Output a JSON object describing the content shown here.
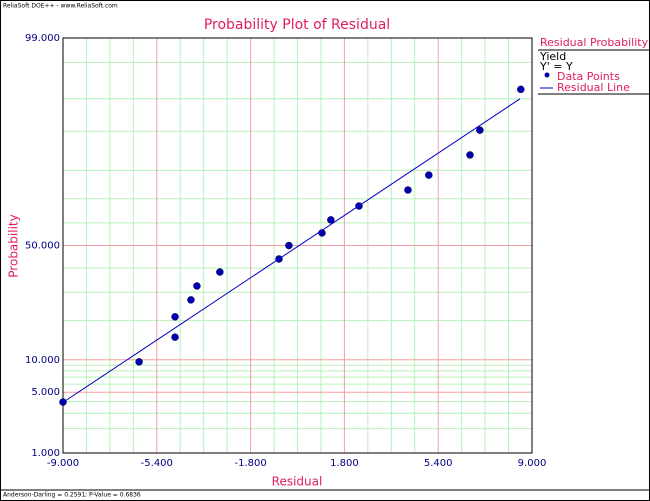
{
  "chart_data": {
    "type": "scatter",
    "header": "ReliaSoft DOE++ - www.ReliaSoft.com",
    "title": "Probability Plot of Residual",
    "xlabel": "Residual",
    "ylabel": "Probability",
    "footer": "Anderson-Darling = 0.2591; P-Value = 0.6836",
    "legend_title": "Residual Probability",
    "legend_lines": [
      "Yield",
      "Y' = Y"
    ],
    "yscale": "normal-probability",
    "xlim": [
      -9,
      9
    ],
    "ylim": [
      1,
      99
    ],
    "xticks": [
      {
        "value": -9,
        "label": "-9.000"
      },
      {
        "value": -5.4,
        "label": "-5.400"
      },
      {
        "value": -1.8,
        "label": "-1.800"
      },
      {
        "value": 1.8,
        "label": "1.800"
      },
      {
        "value": 5.4,
        "label": "5.400"
      },
      {
        "value": 9,
        "label": "9.000"
      }
    ],
    "yticks": [
      {
        "value": 1,
        "label": "1.000"
      },
      {
        "value": 5,
        "label": "5.000"
      },
      {
        "value": 10,
        "label": "10.000"
      },
      {
        "value": 50,
        "label": "50.000"
      },
      {
        "value": 99,
        "label": "99.000"
      }
    ],
    "x_minor_grid": [
      -8.1,
      -7.2,
      -6.3,
      -4.5,
      -3.6,
      -2.7,
      -0.9,
      0,
      0.9,
      2.7,
      3.6,
      4.5,
      6.3,
      7.2,
      8.1
    ],
    "y_minor_grid": [
      2,
      3,
      4,
      6,
      7,
      8,
      9,
      20,
      30,
      40,
      60,
      70,
      80,
      90,
      95,
      98
    ],
    "grid_color": "#b8f0b8",
    "major_grid_color": "#f0a0a0",
    "series": [
      {
        "name": "Data Points",
        "type": "scatter",
        "color": "#0000b0",
        "x": [
          -9.0,
          -6.08,
          -4.7,
          -4.7,
          -4.09,
          -3.86,
          -2.98,
          -0.71,
          -0.33,
          0.94,
          1.28,
          2.36,
          4.24,
          5.04,
          6.62,
          7.0,
          8.57
        ],
        "values": [
          3.96,
          9.6,
          15.2,
          21.2,
          27.1,
          32.5,
          38.3,
          44.0,
          50.0,
          55.6,
          61.3,
          67.1,
          73.3,
          78.5,
          84.5,
          90.2,
          96.0
        ]
      },
      {
        "name": "Residual Line",
        "type": "line",
        "color": "#0000c0",
        "x": [
          -9.0,
          8.54
        ],
        "values": [
          3.93,
          95.0
        ]
      }
    ]
  }
}
